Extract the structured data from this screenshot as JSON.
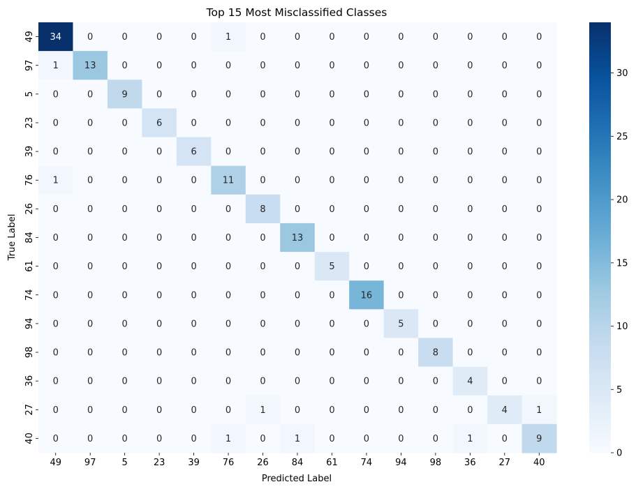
{
  "chart_data": {
    "type": "heatmap",
    "title": "Top 15 Most Misclassified Classes",
    "xlabel": "Predicted Label",
    "ylabel": "True Label",
    "x_categories": [
      "49",
      "97",
      "5",
      "23",
      "39",
      "76",
      "26",
      "84",
      "61",
      "74",
      "94",
      "98",
      "36",
      "27",
      "40"
    ],
    "y_categories": [
      "49",
      "97",
      "5",
      "23",
      "39",
      "76",
      "26",
      "84",
      "61",
      "74",
      "94",
      "98",
      "36",
      "27",
      "40"
    ],
    "values": [
      [
        34,
        0,
        0,
        0,
        0,
        1,
        0,
        0,
        0,
        0,
        0,
        0,
        0,
        0,
        0
      ],
      [
        1,
        13,
        0,
        0,
        0,
        0,
        0,
        0,
        0,
        0,
        0,
        0,
        0,
        0,
        0
      ],
      [
        0,
        0,
        9,
        0,
        0,
        0,
        0,
        0,
        0,
        0,
        0,
        0,
        0,
        0,
        0
      ],
      [
        0,
        0,
        0,
        6,
        0,
        0,
        0,
        0,
        0,
        0,
        0,
        0,
        0,
        0,
        0
      ],
      [
        0,
        0,
        0,
        0,
        6,
        0,
        0,
        0,
        0,
        0,
        0,
        0,
        0,
        0,
        0
      ],
      [
        1,
        0,
        0,
        0,
        0,
        11,
        0,
        0,
        0,
        0,
        0,
        0,
        0,
        0,
        0
      ],
      [
        0,
        0,
        0,
        0,
        0,
        0,
        8,
        0,
        0,
        0,
        0,
        0,
        0,
        0,
        0
      ],
      [
        0,
        0,
        0,
        0,
        0,
        0,
        0,
        13,
        0,
        0,
        0,
        0,
        0,
        0,
        0
      ],
      [
        0,
        0,
        0,
        0,
        0,
        0,
        0,
        0,
        5,
        0,
        0,
        0,
        0,
        0,
        0
      ],
      [
        0,
        0,
        0,
        0,
        0,
        0,
        0,
        0,
        0,
        16,
        0,
        0,
        0,
        0,
        0
      ],
      [
        0,
        0,
        0,
        0,
        0,
        0,
        0,
        0,
        0,
        0,
        5,
        0,
        0,
        0,
        0
      ],
      [
        0,
        0,
        0,
        0,
        0,
        0,
        0,
        0,
        0,
        0,
        0,
        8,
        0,
        0,
        0
      ],
      [
        0,
        0,
        0,
        0,
        0,
        0,
        0,
        0,
        0,
        0,
        0,
        0,
        4,
        0,
        0
      ],
      [
        0,
        0,
        0,
        0,
        0,
        0,
        1,
        0,
        0,
        0,
        0,
        0,
        0,
        4,
        1
      ],
      [
        0,
        0,
        0,
        0,
        0,
        1,
        0,
        1,
        0,
        0,
        0,
        0,
        1,
        0,
        9
      ]
    ],
    "colormap": "Blues",
    "vmin": 0,
    "vmax": 34,
    "colorbar_ticks": [
      0,
      5,
      10,
      15,
      20,
      25,
      30
    ],
    "colorbar_location": "right",
    "annotations": true,
    "grid": false
  }
}
